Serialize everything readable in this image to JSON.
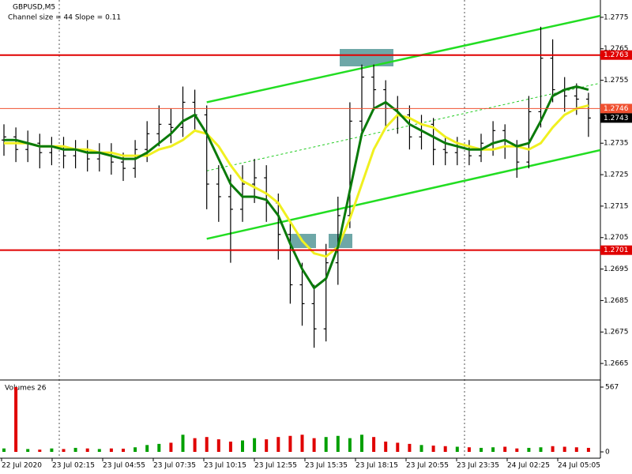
{
  "chart_data": {
    "type": "candlestick",
    "title": "GBPUSD,M5",
    "subtitle": "Channel size = 44 Slope = 0.11",
    "volume_title": "Volumes 26",
    "open": [
      1.2736,
      1.2737,
      1.2733,
      1.2735,
      1.2732,
      1.2734,
      1.2731,
      1.2733,
      1.273,
      1.2732,
      1.2729,
      1.2727,
      1.2733,
      1.2738,
      1.2741,
      1.274,
      1.2748,
      1.2744,
      1.2722,
      1.2718,
      1.2714,
      1.2722,
      1.2724,
      1.2716,
      1.2706,
      1.269,
      1.2684,
      1.2676,
      1.2697,
      1.2712,
      1.2742,
      1.2756,
      1.2752,
      1.2746,
      1.2744,
      1.2737,
      1.2741,
      1.2733,
      1.2732,
      1.2734,
      1.2731,
      1.2735,
      1.2739,
      1.2734,
      1.2729,
      1.2745,
      1.2762,
      1.2752,
      1.275,
      1.2749
    ],
    "high": [
      1.2741,
      1.274,
      1.2739,
      1.2738,
      1.2737,
      1.2737,
      1.2736,
      1.2736,
      1.2735,
      1.2735,
      1.2732,
      1.2736,
      1.2742,
      1.2747,
      1.2746,
      1.2753,
      1.2752,
      1.2747,
      1.2728,
      1.2725,
      1.2728,
      1.273,
      1.2728,
      1.2719,
      1.271,
      1.2697,
      1.269,
      1.2703,
      1.2718,
      1.2748,
      1.276,
      1.276,
      1.2755,
      1.275,
      1.2747,
      1.2744,
      1.2743,
      1.2737,
      1.2737,
      1.2736,
      1.2738,
      1.2742,
      1.2741,
      1.2736,
      1.275,
      1.2772,
      1.2768,
      1.2756,
      1.2754,
      1.2751
    ],
    "low": [
      1.2731,
      1.2729,
      1.2729,
      1.2727,
      1.2728,
      1.2727,
      1.2727,
      1.2726,
      1.2726,
      1.2725,
      1.2723,
      1.2724,
      1.2729,
      1.2734,
      1.2735,
      1.2737,
      1.2739,
      1.2714,
      1.271,
      1.2697,
      1.271,
      1.2716,
      1.271,
      1.2698,
      1.2684,
      1.2677,
      1.267,
      1.2672,
      1.269,
      1.2708,
      1.2738,
      1.2746,
      1.274,
      1.2738,
      1.2733,
      1.2733,
      1.2728,
      1.2728,
      1.2728,
      1.2728,
      1.2729,
      1.2731,
      1.273,
      1.2724,
      1.2727,
      1.274,
      1.2748,
      1.2745,
      1.2744,
      1.2737
    ],
    "close": [
      1.2737,
      1.2733,
      1.2735,
      1.2732,
      1.2734,
      1.2731,
      1.2733,
      1.273,
      1.2732,
      1.2729,
      1.2727,
      1.2733,
      1.2738,
      1.2741,
      1.274,
      1.2748,
      1.2744,
      1.2722,
      1.2718,
      1.2714,
      1.2722,
      1.2724,
      1.2716,
      1.2706,
      1.269,
      1.2684,
      1.2676,
      1.2697,
      1.2712,
      1.2742,
      1.2756,
      1.2752,
      1.2746,
      1.2744,
      1.2737,
      1.2741,
      1.2733,
      1.2732,
      1.2734,
      1.2731,
      1.2735,
      1.2739,
      1.2734,
      1.2729,
      1.2745,
      1.2762,
      1.2752,
      1.275,
      1.2749,
      1.2743
    ],
    "moving_averages": [
      {
        "color": "#f0f020",
        "values": [
          1.2735,
          1.2735,
          1.2735,
          1.2734,
          1.2734,
          1.2734,
          1.2733,
          1.2733,
          1.2732,
          1.2732,
          1.2731,
          1.2731,
          1.2731,
          1.2733,
          1.2734,
          1.2736,
          1.2739,
          1.2738,
          1.2734,
          1.2728,
          1.2723,
          1.2721,
          1.2719,
          1.2716,
          1.271,
          1.2704,
          1.27,
          1.2699,
          1.2702,
          1.2711,
          1.2722,
          1.2733,
          1.274,
          1.2744,
          1.2743,
          1.2741,
          1.274,
          1.2737,
          1.2735,
          1.2734,
          1.2733,
          1.2733,
          1.2734,
          1.2734,
          1.2733,
          1.2735,
          1.274,
          1.2744,
          1.2746,
          1.2747
        ]
      },
      {
        "color": "#0a7a0a",
        "values": [
          1.2736,
          1.2736,
          1.2735,
          1.2734,
          1.2734,
          1.2733,
          1.2733,
          1.2732,
          1.2732,
          1.2731,
          1.273,
          1.273,
          1.2732,
          1.2735,
          1.2738,
          1.2742,
          1.2744,
          1.2738,
          1.273,
          1.2722,
          1.2718,
          1.2718,
          1.2717,
          1.2712,
          1.2703,
          1.2695,
          1.2689,
          1.2692,
          1.2702,
          1.272,
          1.2738,
          1.2746,
          1.2748,
          1.2745,
          1.2741,
          1.2739,
          1.2737,
          1.2735,
          1.2734,
          1.2733,
          1.2733,
          1.2735,
          1.2736,
          1.2734,
          1.2735,
          1.2742,
          1.275,
          1.2752,
          1.2753,
          1.2752
        ]
      }
    ],
    "volume": {
      "values": [
        30,
        567,
        25,
        20,
        30,
        25,
        35,
        30,
        25,
        30,
        28,
        40,
        60,
        70,
        80,
        150,
        120,
        130,
        110,
        90,
        100,
        120,
        110,
        130,
        140,
        150,
        120,
        130,
        140,
        120,
        150,
        130,
        90,
        80,
        70,
        60,
        55,
        50,
        45,
        40,
        35,
        40,
        45,
        30,
        35,
        40,
        50,
        45,
        40,
        35
      ]
    },
    "up_color": "#00a000",
    "down_color": "#e00000",
    "ylim": [
      1.266,
      1.27805
    ],
    "yticks": [
      1.2775,
      1.2765,
      1.2755,
      1.2745,
      1.2735,
      1.2725,
      1.2715,
      1.2705,
      1.2695,
      1.2685,
      1.2675,
      1.2665
    ],
    "y2lim": [
      0,
      567
    ],
    "y2ticks": [
      0,
      567
    ],
    "levels": [
      {
        "value": 1.2763,
        "color": "#e00000"
      },
      {
        "value": 1.2746,
        "color": "#f05030"
      },
      {
        "value": 1.2701,
        "color": "#e00000"
      }
    ],
    "current_price": 1.2743,
    "trend_lines": [
      {
        "x": [
          17,
          50
        ],
        "y": [
          1.2748,
          1.27755
        ],
        "color": "#22dd22"
      },
      {
        "x": [
          17,
          50
        ],
        "y": [
          1.27046,
          1.27328
        ],
        "color": "#22dd22"
      },
      {
        "x": [
          17,
          50
        ],
        "y": [
          1.27262,
          1.27541
        ],
        "color": "#22cc22",
        "dashed": true
      }
    ],
    "xtick_labels": [
      "22 Jul 2020",
      "23 Jul 02:15",
      "23 Jul 04:55",
      "23 Jul 07:35",
      "23 Jul 10:15",
      "23 Jul 12:55",
      "23 Jul 15:35",
      "23 Jul 18:15",
      "23 Jul 20:55",
      "23 Jul 23:35",
      "24 Jul 02:25",
      "24 Jul 05:05"
    ]
  }
}
